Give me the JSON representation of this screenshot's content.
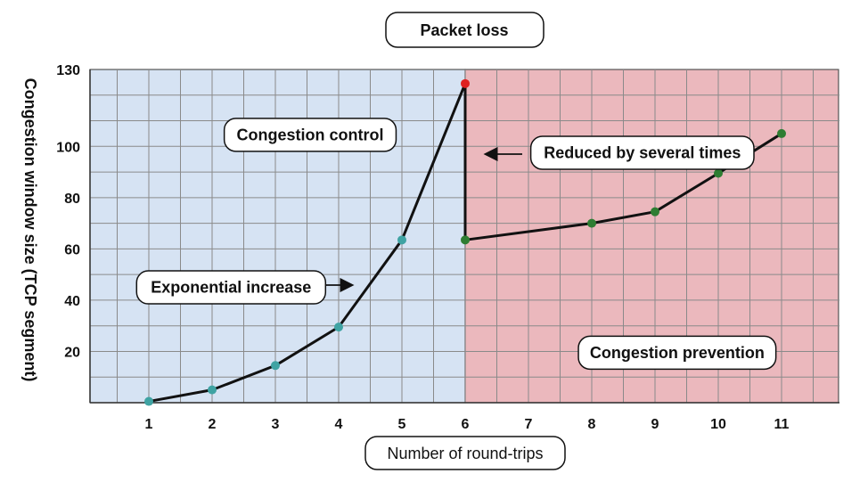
{
  "chart_data": {
    "type": "line",
    "title": "Packet loss",
    "xlabel": "Number of round-trips",
    "ylabel": "Congestion window size (TCP segment)",
    "categories": [
      "1",
      "2",
      "3",
      "4",
      "5",
      "6",
      "7",
      "8",
      "9",
      "10",
      "11"
    ],
    "ylim": [
      0,
      130
    ],
    "yticks": [
      20,
      40,
      60,
      80,
      100,
      130
    ],
    "grid": true,
    "regions": [
      {
        "name": "slow-start",
        "from": 0.05,
        "to": 6,
        "color": "#d6e3f3"
      },
      {
        "name": "congestion-avoidance",
        "from": 6,
        "to": 11.9,
        "color": "#ebb8bd"
      }
    ],
    "series": [
      {
        "points": [
          {
            "x": 1,
            "y": 0.5,
            "color": "#3fa3a3"
          },
          {
            "x": 2,
            "y": 5,
            "color": "#3fa3a3"
          },
          {
            "x": 3,
            "y": 14.5,
            "color": "#3fa3a3"
          },
          {
            "x": 4,
            "y": 29.5,
            "color": "#3fa3a3"
          },
          {
            "x": 5,
            "y": 63.5,
            "color": "#3fa3a3"
          },
          {
            "x": 6,
            "y": 124.5,
            "color": "#e02020"
          },
          {
            "x": 6,
            "y": 63.5,
            "color": "#2e7d32"
          },
          {
            "x": 8,
            "y": 70,
            "color": "#2e7d32"
          },
          {
            "x": 9,
            "y": 74.5,
            "color": "#2e7d32"
          },
          {
            "x": 10,
            "y": 89.5,
            "color": "#2e7d32"
          },
          {
            "x": 11,
            "y": 105,
            "color": "#2e7d32"
          }
        ]
      }
    ],
    "annotations": [
      {
        "id": "congestion-control",
        "text": "Congestion control",
        "x": 3.55,
        "y": 104.5
      },
      {
        "id": "exponential-increase",
        "text": "Exponential increase",
        "x": 2.3,
        "y": 45
      },
      {
        "id": "reduced",
        "text": "Reduced by several times",
        "x": 8.8,
        "y": 97.5
      },
      {
        "id": "congestion-prevention",
        "text": "Congestion prevention",
        "x": 9.35,
        "y": 19.5
      }
    ]
  }
}
